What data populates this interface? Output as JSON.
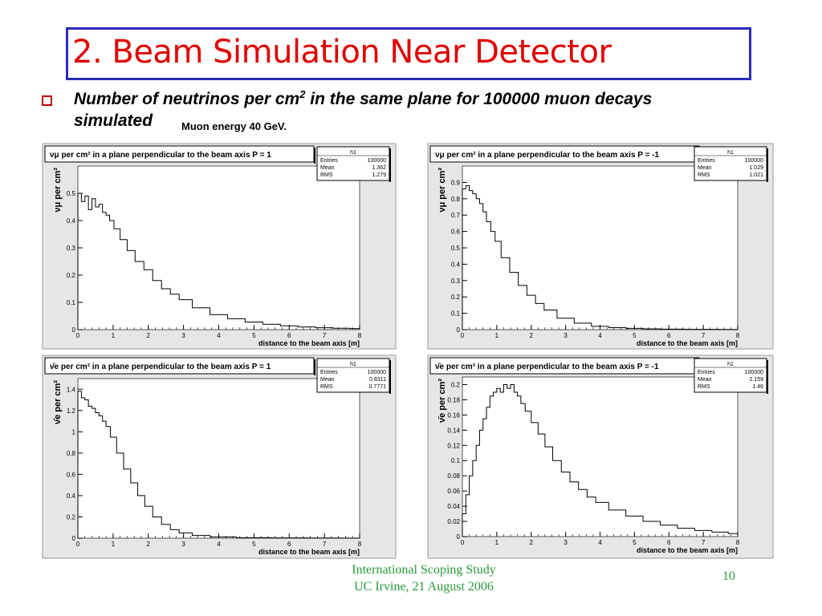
{
  "slide": {
    "title": "2. Beam Simulation Near Detector",
    "bullet_line1": "Number of neutrinos per cm",
    "bullet_sup": "2",
    "bullet_line1_rest": " in the same plane for 100000 muon decays",
    "bullet_line2": "simulated",
    "note": "Muon energy 40 GeV.",
    "footer_line1": "International Scoping Study",
    "footer_line2": "UC Irvine, 21 August 2006",
    "page_number": "10"
  },
  "chart_data": [
    {
      "type": "histogram",
      "title": "νμ per cm² in a plane perpendicular to the beam axis  P = 1",
      "xlabel": "distance to the beam axis [m]",
      "ylabel": "νμ per cm²",
      "xlim": [
        0,
        8
      ],
      "ylim": [
        0,
        0.6
      ],
      "xticks": [
        0,
        1,
        2,
        3,
        4,
        5,
        6,
        7,
        8
      ],
      "yticks": [
        0,
        0.1,
        0.2,
        0.3,
        0.4,
        0.5
      ],
      "stats": {
        "name": "h1",
        "rows": [
          [
            "Entries",
            "100000"
          ],
          [
            "Mean",
            "1.362"
          ],
          [
            "RMS",
            "1.279"
          ]
        ]
      },
      "x": [
        0.05,
        0.15,
        0.25,
        0.35,
        0.45,
        0.55,
        0.65,
        0.75,
        0.85,
        0.95,
        1.1,
        1.3,
        1.5,
        1.75,
        2.0,
        2.25,
        2.5,
        2.75,
        3.0,
        3.5,
        4.0,
        4.5,
        5.0,
        5.5,
        6.0,
        6.5,
        7.0,
        7.5,
        7.95
      ],
      "y": [
        0.5,
        0.47,
        0.49,
        0.44,
        0.48,
        0.45,
        0.46,
        0.43,
        0.42,
        0.4,
        0.37,
        0.33,
        0.29,
        0.25,
        0.22,
        0.18,
        0.15,
        0.13,
        0.11,
        0.08,
        0.055,
        0.04,
        0.028,
        0.02,
        0.014,
        0.01,
        0.007,
        0.005,
        0.004
      ]
    },
    {
      "type": "histogram",
      "title": "νμ per cm² in a plane perpendicular to the beam axis  P = -1",
      "xlabel": "distance to the beam axis [m]",
      "ylabel": "νμ per cm²",
      "xlim": [
        0,
        8
      ],
      "ylim": [
        0,
        1.0
      ],
      "xticks": [
        0,
        1,
        2,
        3,
        4,
        5,
        6,
        7,
        8
      ],
      "yticks": [
        0,
        0.1,
        0.2,
        0.3,
        0.4,
        0.5,
        0.6,
        0.7,
        0.8,
        0.9
      ],
      "stats": {
        "name": "h1",
        "rows": [
          [
            "Entries",
            "100000"
          ],
          [
            "Mean",
            "1.029"
          ],
          [
            "RMS",
            "1.021"
          ]
        ]
      },
      "x": [
        0.05,
        0.15,
        0.25,
        0.35,
        0.45,
        0.55,
        0.65,
        0.75,
        0.9,
        1.0,
        1.25,
        1.5,
        1.75,
        2.0,
        2.25,
        2.5,
        3.0,
        3.5,
        4.0,
        4.5,
        5.0,
        5.5,
        6.0,
        7.0,
        7.95
      ],
      "y": [
        0.86,
        0.88,
        0.85,
        0.83,
        0.8,
        0.77,
        0.72,
        0.66,
        0.6,
        0.54,
        0.44,
        0.35,
        0.27,
        0.21,
        0.16,
        0.12,
        0.07,
        0.04,
        0.02,
        0.012,
        0.008,
        0.005,
        0.003,
        0.002,
        0.001
      ]
    },
    {
      "type": "histogram",
      "title": "ν̄e per cm² in a plane perpendicular to the beam axis  P = 1",
      "xlabel": "distance to the beam axis [m]",
      "ylabel": "ν̄e per cm²",
      "xlim": [
        0,
        8
      ],
      "ylim": [
        0,
        1.5
      ],
      "xticks": [
        0,
        1,
        2,
        3,
        4,
        5,
        6,
        7,
        8
      ],
      "yticks": [
        0,
        0.2,
        0.4,
        0.6,
        0.8,
        1,
        1.2,
        1.4
      ],
      "stats": {
        "name": "h1",
        "rows": [
          [
            "Entries",
            "100000"
          ],
          [
            "Mean",
            "0.8311"
          ],
          [
            "RMS",
            "0.7771"
          ]
        ]
      },
      "x": [
        0.05,
        0.15,
        0.25,
        0.35,
        0.45,
        0.55,
        0.65,
        0.75,
        0.85,
        1.0,
        1.2,
        1.4,
        1.6,
        1.8,
        2.0,
        2.25,
        2.5,
        2.75,
        3.0,
        3.5,
        4.0,
        5.0,
        6.0,
        7.0,
        7.95
      ],
      "y": [
        1.38,
        1.32,
        1.3,
        1.24,
        1.22,
        1.18,
        1.15,
        1.1,
        1.05,
        0.95,
        0.8,
        0.65,
        0.52,
        0.4,
        0.3,
        0.2,
        0.13,
        0.08,
        0.05,
        0.025,
        0.012,
        0.005,
        0.003,
        0.002,
        0.001
      ]
    },
    {
      "type": "histogram",
      "title": "ν̄e per cm² in a plane perpendicular to the beam axis  P = -1",
      "xlabel": "distance to the beam axis [m]",
      "ylabel": "ν̄e per cm²",
      "xlim": [
        0,
        8
      ],
      "ylim": [
        0,
        0.21
      ],
      "xticks": [
        0,
        1,
        2,
        3,
        4,
        5,
        6,
        7,
        8
      ],
      "yticks": [
        0,
        0.02,
        0.04,
        0.06,
        0.08,
        0.1,
        0.12,
        0.14,
        0.16,
        0.18,
        0.2
      ],
      "stats": {
        "name": "h1",
        "rows": [
          [
            "Entries",
            "100000"
          ],
          [
            "Mean",
            "2.159"
          ],
          [
            "RMS",
            "1.46"
          ]
        ]
      },
      "x": [
        0.05,
        0.15,
        0.25,
        0.35,
        0.45,
        0.55,
        0.65,
        0.75,
        0.85,
        0.95,
        1.05,
        1.15,
        1.25,
        1.35,
        1.45,
        1.55,
        1.65,
        1.75,
        1.9,
        2.1,
        2.3,
        2.5,
        2.75,
        3.0,
        3.25,
        3.5,
        3.75,
        4.0,
        4.5,
        5.0,
        5.5,
        6.0,
        6.5,
        7.0,
        7.5,
        7.95
      ],
      "y": [
        0.03,
        0.055,
        0.08,
        0.1,
        0.12,
        0.14,
        0.155,
        0.17,
        0.185,
        0.19,
        0.195,
        0.19,
        0.2,
        0.195,
        0.2,
        0.19,
        0.185,
        0.175,
        0.165,
        0.15,
        0.135,
        0.118,
        0.1,
        0.085,
        0.072,
        0.062,
        0.052,
        0.045,
        0.035,
        0.027,
        0.02,
        0.015,
        0.011,
        0.008,
        0.006,
        0.004
      ]
    }
  ]
}
